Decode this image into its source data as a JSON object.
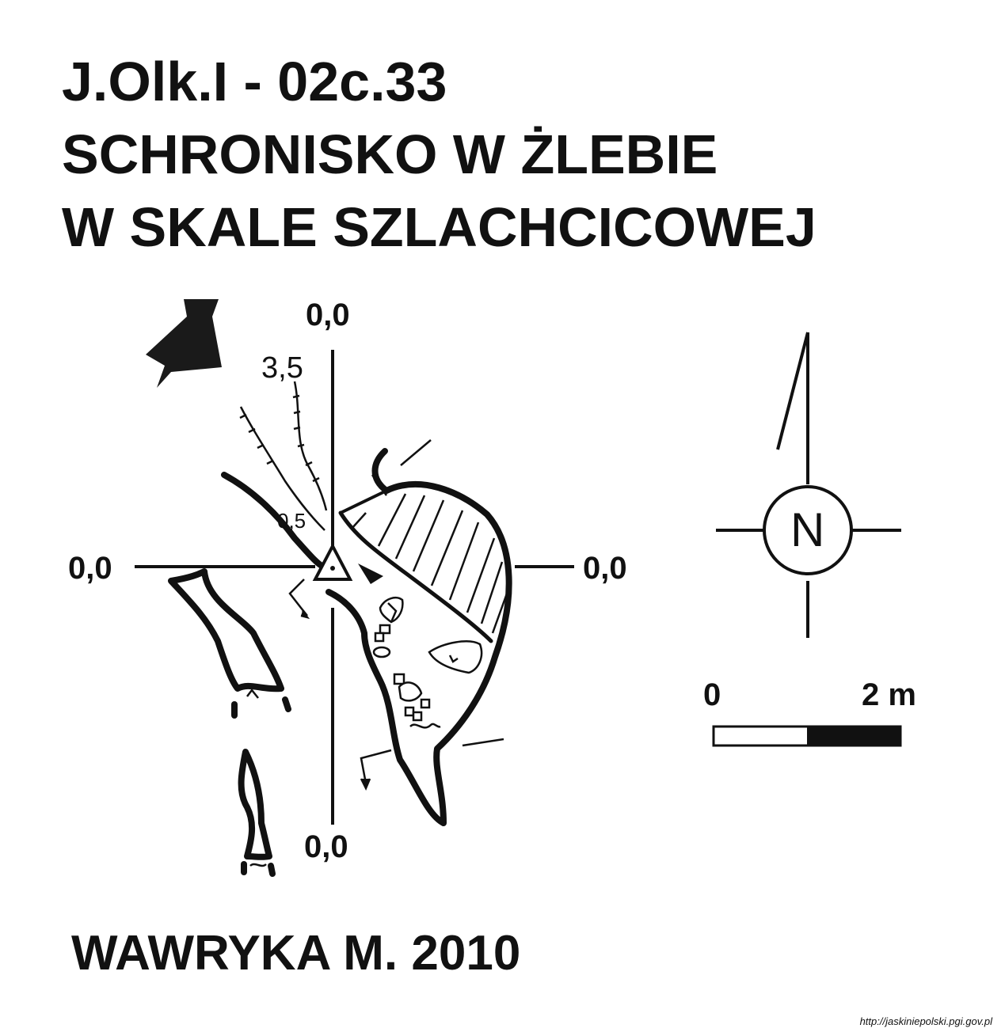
{
  "title": {
    "line1": "J.Olk.I - 02c.33",
    "line2": "SCHRONISKO W ŻLEBIE",
    "line3": "W SKALE SZLACHCICOWEJ"
  },
  "section_labels": {
    "top": "0,0",
    "left": "0,0",
    "right": "0,0",
    "bottom": "0,0"
  },
  "depths": {
    "gully_top": "3,5",
    "entrance": "0,5"
  },
  "north_arrow": {
    "letter": "N"
  },
  "scale_bar": {
    "start_label": "0",
    "end_label": "2 m",
    "length_m": 2
  },
  "author": "WAWRYKA M. 2010",
  "source_url": "http://jaskiniepolski.pgi.gov.pl"
}
